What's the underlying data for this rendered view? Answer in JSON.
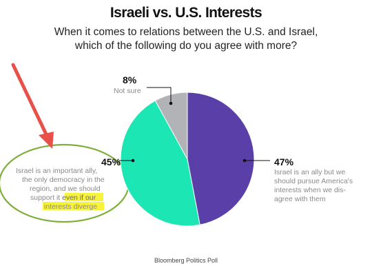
{
  "title": "Israeli vs. U.S. Interests",
  "subtitle_line1": "When it comes to relations between the U.S. and Israel,",
  "subtitle_line2": "which of the following do you agree with more?",
  "source": "Bloomberg Politics Poll",
  "chart_data": {
    "type": "pie",
    "title": "Israeli vs. U.S. Interests",
    "slices": [
      {
        "percent_label": "47%",
        "value": 47,
        "label_lines": [
          "Israel is an ally but we",
          "should pursue America's",
          "interests when we dis-",
          "agree with them"
        ],
        "color": "#5a3fa8"
      },
      {
        "percent_label": "45%",
        "value": 45,
        "label_lines": [
          "Israel is an important ally,",
          "the only democracy in the",
          "region, and we should",
          "support it even if our",
          "interests diverge"
        ],
        "color": "#1de6b5"
      },
      {
        "percent_label": "8%",
        "value": 8,
        "label_lines": [
          "Not sure"
        ],
        "color": "#b1b3b6"
      }
    ]
  },
  "annotations": {
    "highlight_color": "#f7f23a",
    "ellipse_color": "#7fae3c",
    "arrow_color": "#e8514a"
  }
}
